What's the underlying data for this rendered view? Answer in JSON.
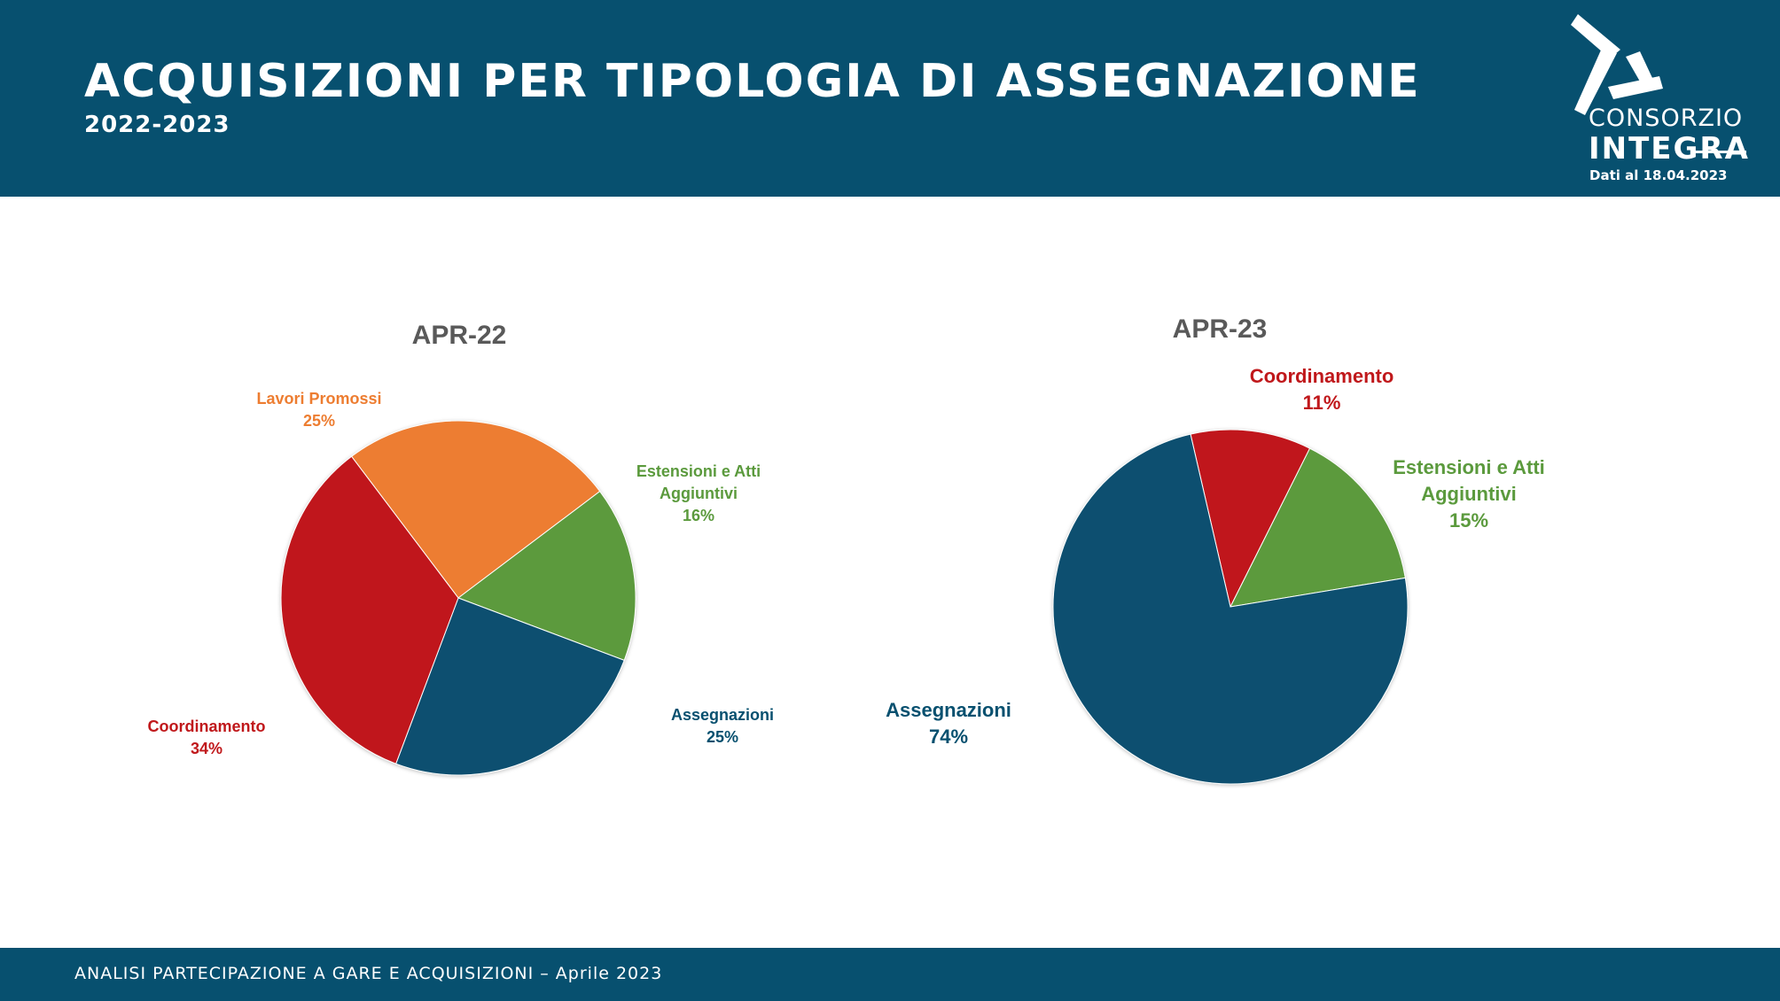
{
  "header": {
    "title": "ACQUISIZIONI PER TIPOLOGIA DI ASSEGNAZIONE",
    "subtitle": "2022-2023",
    "logo_line1": "CONSORZIO",
    "logo_line2": "INTEGRA",
    "date_note": "Dati al 18.04.2023"
  },
  "footer": {
    "text": "ANALISI PARTECIPAZIONE A GARE E ACQUISIZIONI – Aprile 2023"
  },
  "colors": {
    "brand": "#07506f",
    "assegnazioni": "#07506f",
    "coordinamento": "#c0181b",
    "lavori_promossi": "#ed7d31",
    "estensioni": "#5b9a3d"
  },
  "chart_data": [
    {
      "type": "pie",
      "title": "APR-22",
      "slices": [
        {
          "label_lines": [
            "Lavori Promossi"
          ],
          "value": 25,
          "value_label": "25%",
          "color": "#ed7d31"
        },
        {
          "label_lines": [
            "Estensioni  e Atti",
            "Aggiuntivi"
          ],
          "value": 16,
          "value_label": "16%",
          "color": "#5b9a3d"
        },
        {
          "label_lines": [
            "Assegnazioni"
          ],
          "value": 25,
          "value_label": "25%",
          "color": "#07506f"
        },
        {
          "label_lines": [
            "Coordinamento"
          ],
          "value": 34,
          "value_label": "34%",
          "color": "#c0181b"
        }
      ]
    },
    {
      "type": "pie",
      "title": "APR-23",
      "slices": [
        {
          "label_lines": [
            "Coordinamento"
          ],
          "value": 11,
          "value_label": "11%",
          "color": "#c0181b"
        },
        {
          "label_lines": [
            "Estensioni e Atti",
            "Aggiuntivi"
          ],
          "value": 15,
          "value_label": "15%",
          "color": "#5b9a3d"
        },
        {
          "label_lines": [
            "Assegnazioni"
          ],
          "value": 74,
          "value_label": "74%",
          "color": "#07506f"
        }
      ]
    }
  ]
}
